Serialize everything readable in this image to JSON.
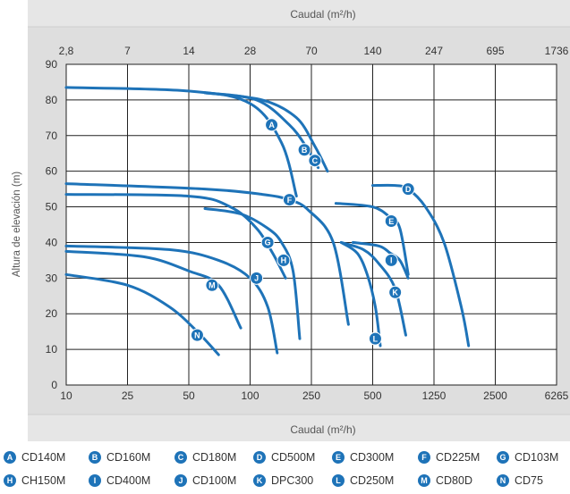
{
  "chart_data": {
    "type": "line",
    "title": "",
    "top_axis_label": "Caudal (m²/h)",
    "top_ticks": [
      "2,8",
      "7",
      "14",
      "28",
      "70",
      "140",
      "247",
      "695",
      "1736"
    ],
    "xlabel": "Caudal (m²/h)",
    "x_ticks": [
      "10",
      "25",
      "50",
      "100",
      "250",
      "500",
      "1250",
      "2500",
      "6265"
    ],
    "ylabel": "Altura de elevación (m)",
    "y_ticks": [
      0,
      10,
      20,
      30,
      40,
      50,
      60,
      70,
      80,
      90
    ],
    "ylim": [
      0,
      90
    ],
    "grid": true,
    "legend_position": "bottom",
    "line_color": "#1e73b8",
    "series": [
      {
        "name": "CD140M",
        "badge": "A",
        "x": [
          10,
          50,
          100,
          160,
          200
        ],
        "y": [
          83.5,
          82.5,
          79,
          68,
          53
        ],
        "badge_at": [
          138,
          73
        ]
      },
      {
        "name": "CD160M",
        "badge": "B",
        "x": [
          60,
          110,
          180,
          230,
          270
        ],
        "y": [
          82,
          80,
          73,
          67,
          61
        ],
        "badge_at": [
          225,
          66
        ]
      },
      {
        "name": "CD180M",
        "badge": "C",
        "x": [
          60,
          120,
          200,
          260,
          300
        ],
        "y": [
          82,
          80,
          75,
          67,
          60
        ],
        "badge_at": [
          260,
          63
        ]
      },
      {
        "name": "CD500M",
        "badge": "D",
        "x": [
          500,
          700,
          850,
          1100,
          1400,
          1700,
          1850
        ],
        "y": [
          56,
          56,
          55,
          50,
          40,
          22,
          11
        ],
        "badge_at": [
          850,
          55
        ]
      },
      {
        "name": "CD300M",
        "badge": "E",
        "x": [
          330,
          500,
          650,
          750,
          850
        ],
        "y": [
          51,
          50,
          47,
          44,
          31
        ],
        "badge_at": [
          660,
          46
        ]
      },
      {
        "name": "CD225M",
        "badge": "F",
        "x": [
          10,
          60,
          120,
          180,
          240,
          320,
          380
        ],
        "y": [
          56.5,
          55,
          53.5,
          52,
          49,
          40,
          17
        ],
        "badge_at": [
          180,
          52
        ]
      },
      {
        "name": "CD103M",
        "badge": "G",
        "x": [
          10,
          50,
          80,
          110,
          140,
          170
        ],
        "y": [
          53.5,
          53,
          50,
          44,
          37,
          30
        ],
        "badge_at": [
          130,
          40
        ]
      },
      {
        "name": "CH150M",
        "badge": "H",
        "x": [
          60,
          90,
          130,
          160,
          190,
          210
        ],
        "y": [
          49.5,
          48,
          44,
          40,
          32,
          13
        ],
        "badge_at": [
          165,
          35
        ]
      },
      {
        "name": "CD400M",
        "badge": "I",
        "x": [
          400,
          550,
          650,
          750,
          850
        ],
        "y": [
          40,
          39,
          37,
          35,
          30
        ],
        "badge_at": [
          660,
          35
        ]
      },
      {
        "name": "CD100M",
        "badge": "J",
        "x": [
          10,
          40,
          70,
          100,
          130,
          150
        ],
        "y": [
          39,
          38,
          35,
          30,
          22,
          9
        ],
        "badge_at": [
          110,
          30
        ]
      },
      {
        "name": "DPC300",
        "badge": "K",
        "x": [
          350,
          450,
          550,
          700,
          820
        ],
        "y": [
          40,
          38,
          34,
          27,
          14
        ],
        "badge_at": [
          700,
          26
        ]
      },
      {
        "name": "CD250M",
        "badge": "L",
        "x": [
          350,
          420,
          470,
          520,
          560
        ],
        "y": [
          40,
          37,
          31,
          22,
          11
        ],
        "badge_at": [
          520,
          13
        ]
      },
      {
        "name": "CD80D",
        "badge": "M",
        "x": [
          10,
          30,
          50,
          70,
          90
        ],
        "y": [
          37.5,
          36,
          32,
          28,
          16
        ],
        "badge_at": [
          65,
          28
        ]
      },
      {
        "name": "CD75",
        "badge": "N",
        "x": [
          10,
          25,
          40,
          55,
          70
        ],
        "y": [
          31,
          28,
          22,
          15,
          8.5
        ],
        "badge_at": [
          55,
          14
        ]
      }
    ]
  }
}
